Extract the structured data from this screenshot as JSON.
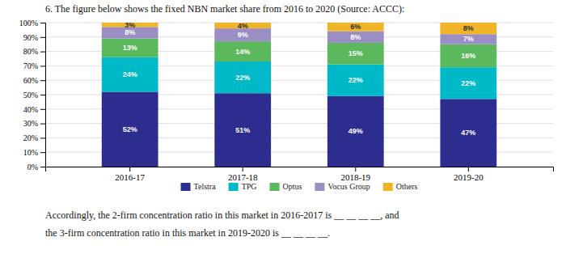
{
  "chart_data": {
    "type": "bar",
    "stacked": true,
    "title": "6.  The figure below shows the fixed NBN market share from 2016 to 2020 (Source:  ACCC):",
    "categories": [
      "2016-17",
      "2017-18",
      "2018-19",
      "2019-20"
    ],
    "series": [
      {
        "name": "Telstra",
        "color": "#2d2d8f",
        "values": [
          52,
          51,
          49,
          47
        ],
        "value_labels": [
          "52%",
          "51%",
          "49%",
          "47%"
        ]
      },
      {
        "name": "TPG",
        "color": "#00b9c8",
        "values": [
          24,
          22,
          22,
          22
        ],
        "value_labels": [
          "24%",
          "22%",
          "22%",
          "22%"
        ]
      },
      {
        "name": "Optus",
        "color": "#5cb85c",
        "values": [
          13,
          14,
          15,
          16
        ],
        "value_labels": [
          "13%",
          "14%",
          "15%",
          "16%"
        ]
      },
      {
        "name": "Vocus Group",
        "color": "#9b8ec4",
        "values": [
          8,
          9,
          8,
          7
        ],
        "value_labels": [
          "8%",
          "9%",
          "8%",
          "7%"
        ]
      },
      {
        "name": "Others",
        "color": "#f0b429",
        "values": [
          3,
          4,
          6,
          8
        ],
        "value_labels": [
          "3%",
          "4%",
          "6%",
          "8%"
        ]
      }
    ],
    "ylim": [
      0,
      100
    ],
    "yticks": [
      {
        "value": 0,
        "label": "0%"
      },
      {
        "value": 10,
        "label": "10%"
      },
      {
        "value": 20,
        "label": "20%"
      },
      {
        "value": 30,
        "label": "30%"
      },
      {
        "value": 40,
        "label": "40%"
      },
      {
        "value": 50,
        "label": "50%"
      },
      {
        "value": 60,
        "label": "60%"
      },
      {
        "value": 70,
        "label": "70%"
      },
      {
        "value": 80,
        "label": "80%"
      },
      {
        "value": 90,
        "label": "90%"
      },
      {
        "value": 100,
        "label": "100%"
      }
    ],
    "grid": true,
    "data_labels": true,
    "legend": "bottom",
    "annotations": [
      "Accordingly, the 2-firm concentration ratio in this market in 2016-2017 is __ __ __ __, and",
      "the 3-firm concentration ratio in this market in 2019-2020 is __ __ __ __."
    ]
  }
}
